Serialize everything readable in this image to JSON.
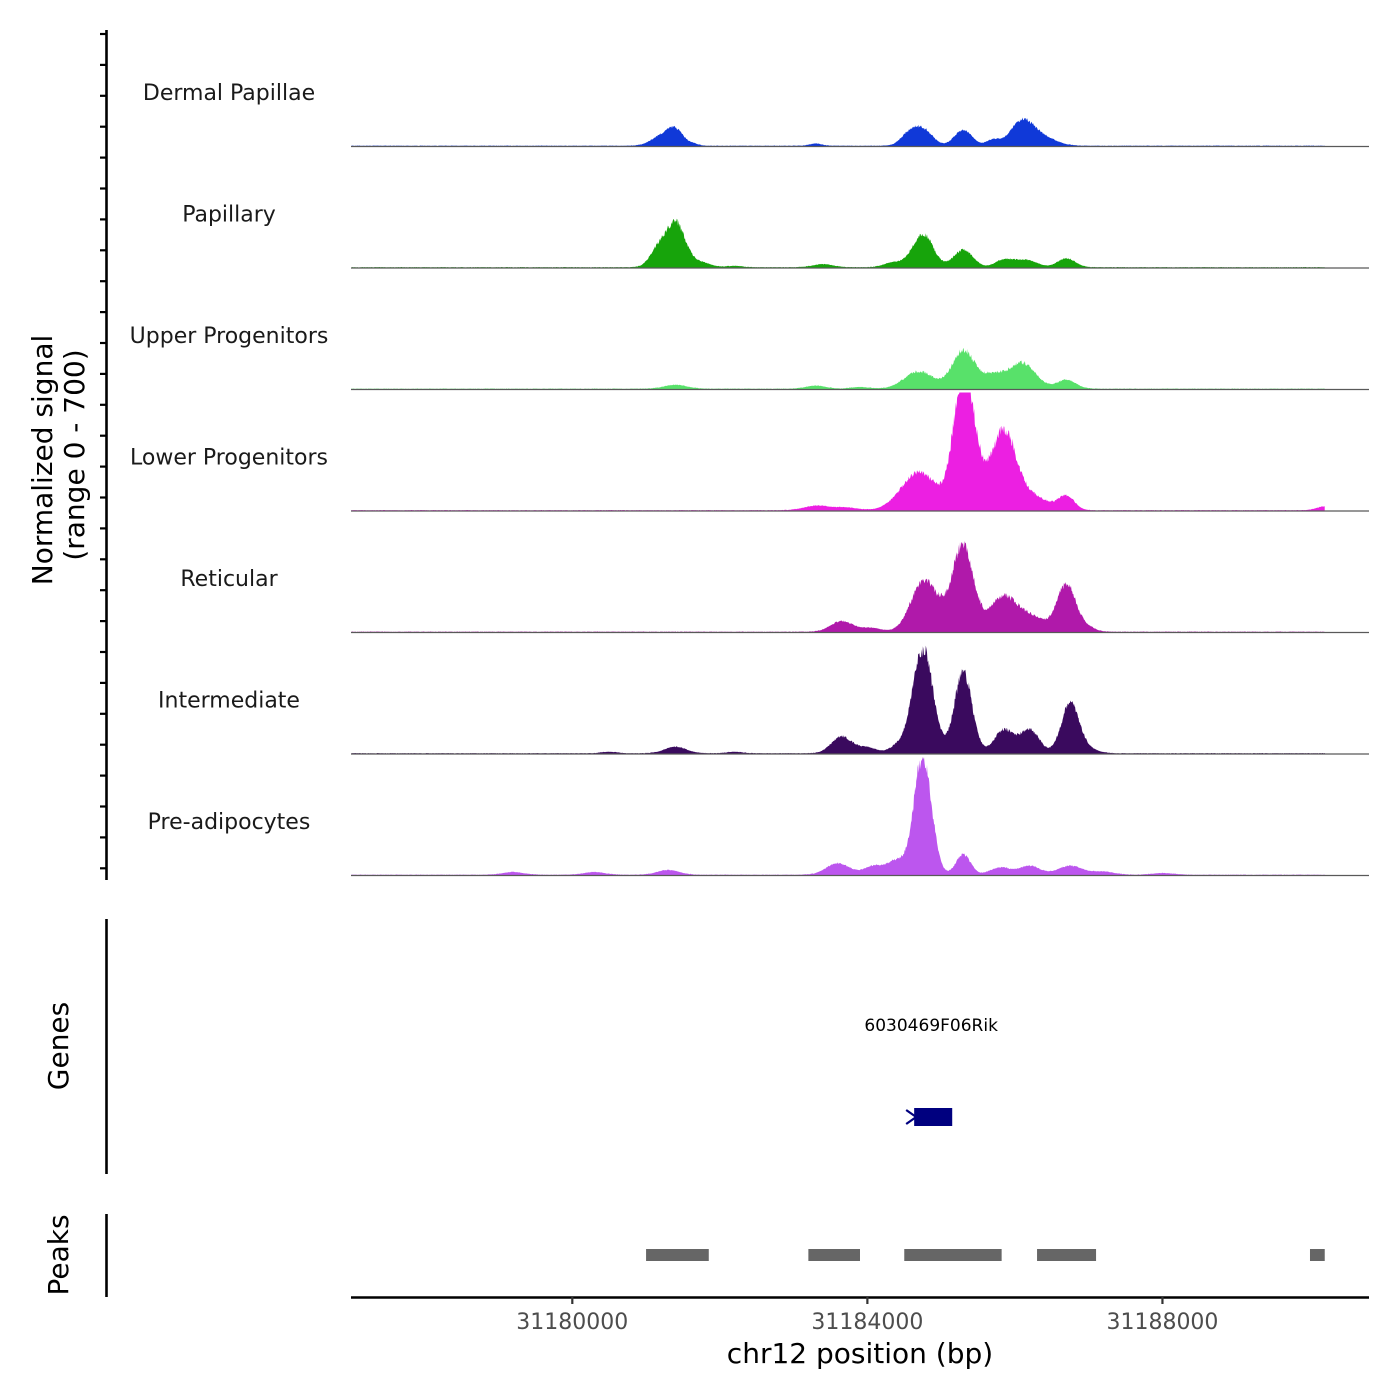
{
  "chart_data": {
    "type": "area",
    "title": "",
    "ylabel_line1": "Normalized signal",
    "ylabel_line2": "(range 0 - 700)",
    "ylim": [
      0,
      700
    ],
    "xlabel": "chr12 position (bp)",
    "xlim": [
      31177000,
      31190800
    ],
    "xticks": [
      31180000,
      31184000,
      31188000
    ],
    "xtick_labels": [
      "31180000",
      "31184000",
      "31188000"
    ],
    "series": [
      {
        "name": "Dermal Papillae",
        "color": "#1039d8",
        "peaks": [
          {
            "center": 31181400,
            "height": 90,
            "width": 110
          },
          {
            "center": 31181200,
            "height": 55,
            "width": 140
          },
          {
            "center": 31181650,
            "height": 12,
            "width": 60
          },
          {
            "center": 31183300,
            "height": 15,
            "width": 80
          },
          {
            "center": 31184750,
            "height": 100,
            "width": 130
          },
          {
            "center": 31184550,
            "height": 60,
            "width": 110
          },
          {
            "center": 31185300,
            "height": 95,
            "width": 120
          },
          {
            "center": 31185700,
            "height": 35,
            "width": 90
          },
          {
            "center": 31186100,
            "height": 145,
            "width": 160
          },
          {
            "center": 31186400,
            "height": 45,
            "width": 180
          }
        ]
      },
      {
        "name": "Papillary",
        "color": "#17a40b",
        "peaks": [
          {
            "center": 31181400,
            "height": 270,
            "width": 130
          },
          {
            "center": 31181150,
            "height": 95,
            "width": 110
          },
          {
            "center": 31181750,
            "height": 30,
            "width": 130
          },
          {
            "center": 31182200,
            "height": 10,
            "width": 100
          },
          {
            "center": 31183400,
            "height": 20,
            "width": 140
          },
          {
            "center": 31184350,
            "height": 30,
            "width": 130
          },
          {
            "center": 31184750,
            "height": 200,
            "width": 140
          },
          {
            "center": 31185300,
            "height": 105,
            "width": 130
          },
          {
            "center": 31185850,
            "height": 45,
            "width": 120
          },
          {
            "center": 31186150,
            "height": 45,
            "width": 150
          },
          {
            "center": 31186700,
            "height": 55,
            "width": 120
          }
        ]
      },
      {
        "name": "Upper Progenitors",
        "color": "#58e16a",
        "peaks": [
          {
            "center": 31181400,
            "height": 25,
            "width": 160
          },
          {
            "center": 31183300,
            "height": 20,
            "width": 140
          },
          {
            "center": 31183900,
            "height": 12,
            "width": 120
          },
          {
            "center": 31184700,
            "height": 105,
            "width": 200
          },
          {
            "center": 31185300,
            "height": 230,
            "width": 150
          },
          {
            "center": 31185700,
            "height": 80,
            "width": 150
          },
          {
            "center": 31186100,
            "height": 155,
            "width": 180
          },
          {
            "center": 31186700,
            "height": 55,
            "width": 130
          }
        ]
      },
      {
        "name": "Lower Progenitors",
        "color": "#ec1fe2",
        "peaks": [
          {
            "center": 31183300,
            "height": 28,
            "width": 170
          },
          {
            "center": 31183700,
            "height": 18,
            "width": 170
          },
          {
            "center": 31184700,
            "height": 225,
            "width": 240
          },
          {
            "center": 31185300,
            "height": 680,
            "width": 130
          },
          {
            "center": 31185450,
            "height": 200,
            "width": 200
          },
          {
            "center": 31185850,
            "height": 340,
            "width": 140
          },
          {
            "center": 31186000,
            "height": 150,
            "width": 230
          },
          {
            "center": 31186700,
            "height": 85,
            "width": 110
          },
          {
            "center": 31186400,
            "height": 30,
            "width": 150
          },
          {
            "center": 31190200,
            "height": 25,
            "width": 110
          }
        ]
      },
      {
        "name": "Reticular",
        "color": "#b019aa",
        "peaks": [
          {
            "center": 31183650,
            "height": 65,
            "width": 150
          },
          {
            "center": 31184050,
            "height": 25,
            "width": 140
          },
          {
            "center": 31184750,
            "height": 280,
            "width": 170
          },
          {
            "center": 31185000,
            "height": 70,
            "width": 160
          },
          {
            "center": 31185300,
            "height": 500,
            "width": 140
          },
          {
            "center": 31185850,
            "height": 210,
            "width": 190
          },
          {
            "center": 31186250,
            "height": 80,
            "width": 170
          },
          {
            "center": 31186700,
            "height": 280,
            "width": 130
          },
          {
            "center": 31187000,
            "height": 25,
            "width": 100
          }
        ]
      },
      {
        "name": "Intermediate",
        "color": "#3a0a5e",
        "peaks": [
          {
            "center": 31181400,
            "height": 40,
            "width": 150
          },
          {
            "center": 31183650,
            "height": 100,
            "width": 140
          },
          {
            "center": 31184000,
            "height": 35,
            "width": 130
          },
          {
            "center": 31184400,
            "height": 40,
            "width": 110
          },
          {
            "center": 31184750,
            "height": 620,
            "width": 140
          },
          {
            "center": 31185300,
            "height": 480,
            "width": 120
          },
          {
            "center": 31185850,
            "height": 140,
            "width": 130
          },
          {
            "center": 31186200,
            "height": 140,
            "width": 130
          },
          {
            "center": 31186750,
            "height": 300,
            "width": 120
          },
          {
            "center": 31187000,
            "height": 25,
            "width": 130
          },
          {
            "center": 31180500,
            "height": 10,
            "width": 100
          },
          {
            "center": 31182200,
            "height": 10,
            "width": 100
          }
        ]
      },
      {
        "name": "Pre-adipocytes",
        "color": "#bc56ee",
        "peaks": [
          {
            "center": 31179200,
            "height": 18,
            "width": 140
          },
          {
            "center": 31180300,
            "height": 18,
            "width": 140
          },
          {
            "center": 31181300,
            "height": 30,
            "width": 150
          },
          {
            "center": 31183600,
            "height": 70,
            "width": 160
          },
          {
            "center": 31184100,
            "height": 55,
            "width": 140
          },
          {
            "center": 31184400,
            "height": 80,
            "width": 120
          },
          {
            "center": 31184750,
            "height": 700,
            "width": 120
          },
          {
            "center": 31185300,
            "height": 120,
            "width": 100
          },
          {
            "center": 31185800,
            "height": 45,
            "width": 140
          },
          {
            "center": 31186200,
            "height": 55,
            "width": 140
          },
          {
            "center": 31186750,
            "height": 55,
            "width": 170
          },
          {
            "center": 31187200,
            "height": 20,
            "width": 150
          },
          {
            "center": 31188000,
            "height": 12,
            "width": 140
          }
        ]
      }
    ],
    "genes_track": {
      "label": "Genes",
      "genes": [
        {
          "name": "6030469F06Rik",
          "start": 31184580,
          "end": 31185150,
          "strand": "-",
          "color": "#00007f"
        }
      ]
    },
    "peaks_track": {
      "label": "Peaks",
      "color": "#666666",
      "regions": [
        {
          "start": 31181000,
          "end": 31181850
        },
        {
          "start": 31183200,
          "end": 31183900
        },
        {
          "start": 31184500,
          "end": 31185820
        },
        {
          "start": 31186300,
          "end": 31187100
        },
        {
          "start": 31190000,
          "end": 31190200
        }
      ]
    }
  }
}
